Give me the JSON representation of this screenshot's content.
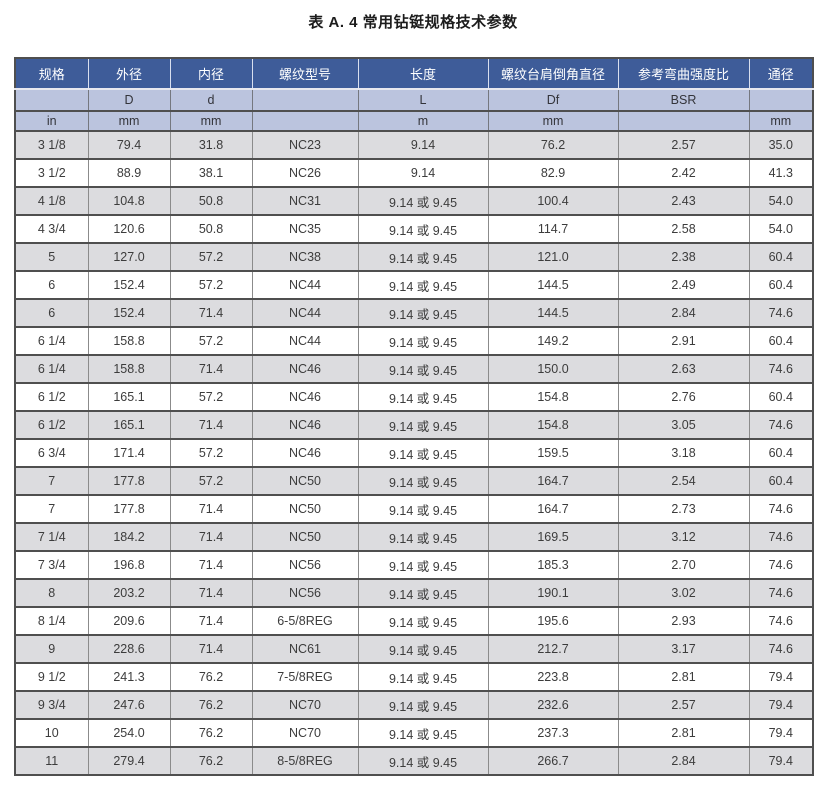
{
  "title": "表 A. 4 常用钻铤规格技术参数",
  "colors": {
    "header_bg": "#3e5c99",
    "header_text": "#ffffff",
    "subheader_bg": "#bbc4de",
    "row_shade": "#dcdcdf",
    "row_plain": "#ffffff",
    "border_dark": "#4f4f4f"
  },
  "table": {
    "columns": [
      {
        "label": "规格",
        "symbol": "",
        "unit": "in"
      },
      {
        "label": "外径",
        "symbol": "D",
        "unit": "mm"
      },
      {
        "label": "内径",
        "symbol": "d",
        "unit": "mm"
      },
      {
        "label": "螺纹型号",
        "symbol": "",
        "unit": ""
      },
      {
        "label": "长度",
        "symbol": "L",
        "unit": "m"
      },
      {
        "label": "螺纹台肩倒角直径",
        "symbol": "Df",
        "unit": "mm"
      },
      {
        "label": "参考弯曲强度比",
        "symbol": "BSR",
        "unit": ""
      },
      {
        "label": "通径",
        "symbol": "",
        "unit": "mm"
      }
    ],
    "rows": [
      [
        "3 1/8",
        "79.4",
        "31.8",
        "NC23",
        "9.14",
        "76.2",
        "2.57",
        "35.0"
      ],
      [
        "3 1/2",
        "88.9",
        "38.1",
        "NC26",
        "9.14",
        "82.9",
        "2.42",
        "41.3"
      ],
      [
        "4 1/8",
        "104.8",
        "50.8",
        "NC31",
        "9.14 或 9.45",
        "100.4",
        "2.43",
        "54.0"
      ],
      [
        "4 3/4",
        "120.6",
        "50.8",
        "NC35",
        "9.14 或 9.45",
        "114.7",
        "2.58",
        "54.0"
      ],
      [
        "5",
        "127.0",
        "57.2",
        "NC38",
        "9.14 或 9.45",
        "121.0",
        "2.38",
        "60.4"
      ],
      [
        "6",
        "152.4",
        "57.2",
        "NC44",
        "9.14 或 9.45",
        "144.5",
        "2.49",
        "60.4"
      ],
      [
        "6",
        "152.4",
        "71.4",
        "NC44",
        "9.14 或 9.45",
        "144.5",
        "2.84",
        "74.6"
      ],
      [
        "6 1/4",
        "158.8",
        "57.2",
        "NC44",
        "9.14 或 9.45",
        "149.2",
        "2.91",
        "60.4"
      ],
      [
        "6 1/4",
        "158.8",
        "71.4",
        "NC46",
        "9.14 或 9.45",
        "150.0",
        "2.63",
        "74.6"
      ],
      [
        "6 1/2",
        "165.1",
        "57.2",
        "NC46",
        "9.14 或 9.45",
        "154.8",
        "2.76",
        "60.4"
      ],
      [
        "6 1/2",
        "165.1",
        "71.4",
        "NC46",
        "9.14 或 9.45",
        "154.8",
        "3.05",
        "74.6"
      ],
      [
        "6 3/4",
        "171.4",
        "57.2",
        "NC46",
        "9.14 或 9.45",
        "159.5",
        "3.18",
        "60.4"
      ],
      [
        "7",
        "177.8",
        "57.2",
        "NC50",
        "9.14 或 9.45",
        "164.7",
        "2.54",
        "60.4"
      ],
      [
        "7",
        "177.8",
        "71.4",
        "NC50",
        "9.14 或 9.45",
        "164.7",
        "2.73",
        "74.6"
      ],
      [
        "7 1/4",
        "184.2",
        "71.4",
        "NC50",
        "9.14 或 9.45",
        "169.5",
        "3.12",
        "74.6"
      ],
      [
        "7 3/4",
        "196.8",
        "71.4",
        "NC56",
        "9.14 或 9.45",
        "185.3",
        "2.70",
        "74.6"
      ],
      [
        "8",
        "203.2",
        "71.4",
        "NC56",
        "9.14 或 9.45",
        "190.1",
        "3.02",
        "74.6"
      ],
      [
        "8 1/4",
        "209.6",
        "71.4",
        "6-5/8REG",
        "9.14 或 9.45",
        "195.6",
        "2.93",
        "74.6"
      ],
      [
        "9",
        "228.6",
        "71.4",
        "NC61",
        "9.14 或 9.45",
        "212.7",
        "3.17",
        "74.6"
      ],
      [
        "9 1/2",
        "241.3",
        "76.2",
        "7-5/8REG",
        "9.14 或 9.45",
        "223.8",
        "2.81",
        "79.4"
      ],
      [
        "9 3/4",
        "247.6",
        "76.2",
        "NC70",
        "9.14 或 9.45",
        "232.6",
        "2.57",
        "79.4"
      ],
      [
        "10",
        "254.0",
        "76.2",
        "NC70",
        "9.14 或 9.45",
        "237.3",
        "2.81",
        "79.4"
      ],
      [
        "11",
        "279.4",
        "76.2",
        "8-5/8REG",
        "9.14 或 9.45",
        "266.7",
        "2.84",
        "79.4"
      ]
    ]
  }
}
